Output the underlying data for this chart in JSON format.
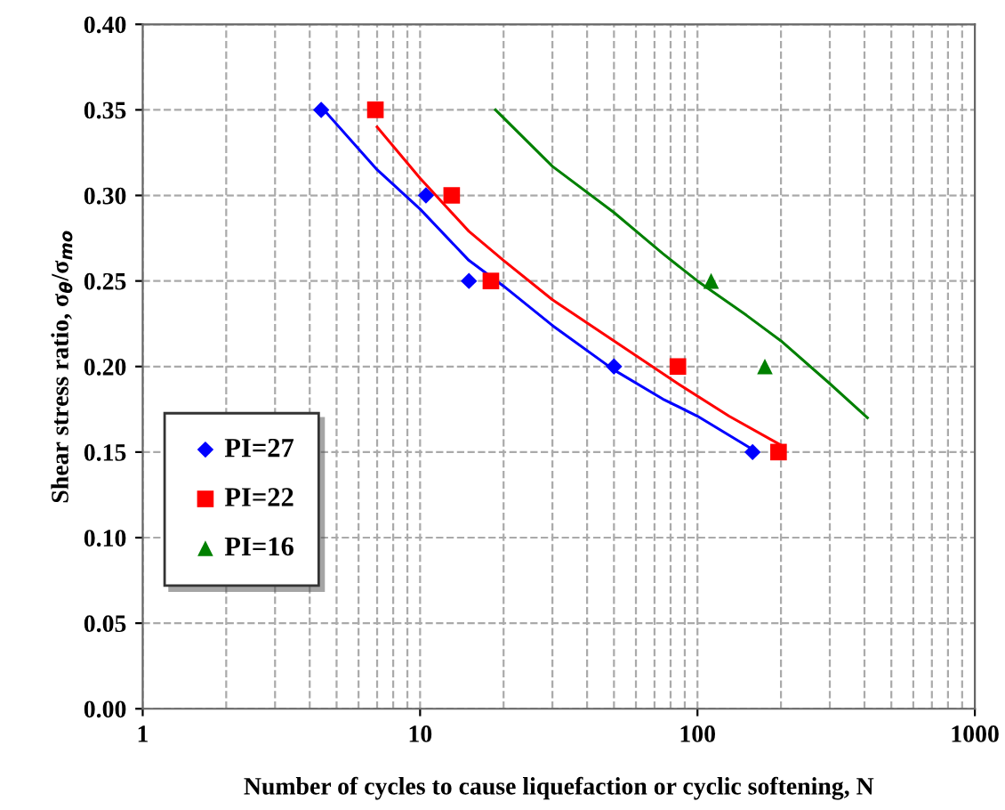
{
  "chart_data": {
    "type": "scatter",
    "xlabel": "Number of cycles to cause liquefaction or cyclic softening, N",
    "ylabel": "Shear stress ratio, σ$_{θ}$/σ$_{mo}$",
    "log": "x",
    "xlim": [
      1,
      1000
    ],
    "xticks": [
      1,
      10,
      100,
      1000
    ],
    "ylim": [
      0,
      0.4
    ],
    "yticks": [
      {
        "value": 0,
        "label": "0.00"
      },
      {
        "value": 0.05,
        "label": "0.05"
      },
      {
        "value": 0.1,
        "label": "0.10"
      },
      {
        "value": 0.15,
        "label": "0.15"
      },
      {
        "value": 0.2,
        "label": "0.20"
      },
      {
        "value": 0.25,
        "label": "0.25"
      },
      {
        "value": 0.3,
        "label": "0.30"
      },
      {
        "value": 0.35,
        "label": "0.35"
      },
      {
        "value": 0.4,
        "label": "0.40"
      }
    ],
    "grid": true,
    "legend": "bottom left",
    "series": [
      {
        "name": "PI=27",
        "color": "#0000ff",
        "marker": "diamond",
        "x": [
          4.4,
          10.5,
          15,
          50,
          158
        ],
        "values": [
          0.35,
          0.3,
          0.25,
          0.2,
          0.15
        ]
      },
      {
        "name": "PI=22",
        "color": "#ff0000",
        "marker": "square",
        "x": [
          6.9,
          13,
          18,
          85,
          196
        ],
        "values": [
          0.35,
          0.3,
          0.25,
          0.2,
          0.15
        ]
      },
      {
        "name": "PI=16",
        "color": "#008000",
        "marker": "triangle",
        "x": [
          112,
          175
        ],
        "values": [
          0.25,
          0.2
        ]
      },
      {
        "type": "line",
        "color": "#0000ff",
        "x": [
          4.5,
          7,
          10,
          15,
          20,
          30,
          50,
          75,
          100,
          160
        ],
        "values": [
          0.35,
          0.315,
          0.292,
          0.262,
          0.247,
          0.224,
          0.198,
          0.181,
          0.171,
          0.151
        ]
      },
      {
        "type": "line",
        "color": "#ff0000",
        "x": [
          7,
          10,
          15,
          20,
          30,
          50,
          85,
          130,
          200
        ],
        "values": [
          0.34,
          0.31,
          0.279,
          0.262,
          0.239,
          0.215,
          0.19,
          0.171,
          0.154
        ]
      },
      {
        "type": "line",
        "color": "#008000",
        "x": [
          18.7,
          30,
          50,
          75,
          100,
          150,
          200,
          300,
          410
        ],
        "values": [
          0.35,
          0.317,
          0.29,
          0.266,
          0.25,
          0.23,
          0.215,
          0.19,
          0.17
        ]
      }
    ]
  }
}
